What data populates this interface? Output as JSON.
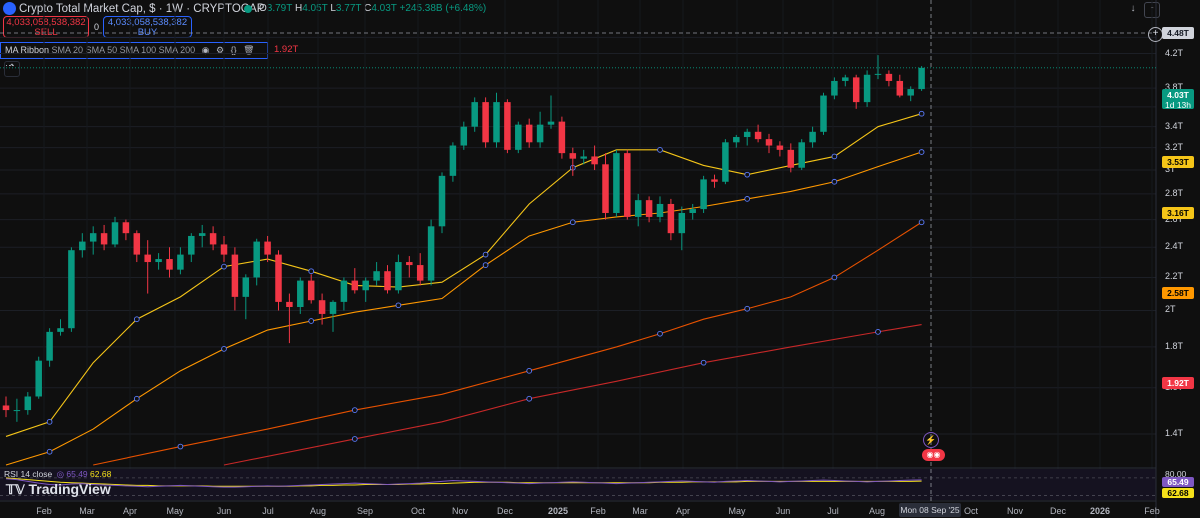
{
  "header": {
    "title": "Crypto Total Market Cap, $ · 1W · CRYPTOCAP",
    "ohlc": [
      {
        "label": "O",
        "value": "3.79T"
      },
      {
        "label": "H",
        "value": "4.05T"
      },
      {
        "label": "L",
        "value": "3.77T"
      },
      {
        "label": "C",
        "value": "4.03T"
      }
    ],
    "change": "+245.38B (+6.48%)"
  },
  "trade": {
    "sell_price": "4,033,058,538,382",
    "sell_label": "SELL",
    "spread": "0",
    "buy_price": "4,033,058,538,382",
    "buy_label": "BUY"
  },
  "indicator": {
    "name": "MA Ribbon",
    "params": "SMA 20 SMA 50 SMA 100 SMA 200",
    "trailing_value": "1.92T"
  },
  "rsi": {
    "label": "RSI 14 close",
    "value1": "65.49",
    "value2": "62.68"
  },
  "watermark": "TradingView",
  "price_axis": {
    "crosshair_price": "4.48T",
    "current_price": "4.03T",
    "countdown": "1d 13h",
    "ma_labels": [
      {
        "value": "3.53T",
        "color": "#f5c518",
        "text_color": "#000000"
      },
      {
        "value": "3.16T",
        "color": "#f5c518",
        "text_color": "#000000"
      },
      {
        "value": "2.58T",
        "color": "#ff9800",
        "text_color": "#000000"
      },
      {
        "value": "1.92T",
        "color": "#f23645",
        "text_color": "#ffffff"
      }
    ],
    "rsi_top": "80.00",
    "rsi_labels": [
      {
        "value": "65.49",
        "color": "#7e57c2",
        "text_color": "#ffffff"
      },
      {
        "value": "62.68",
        "color": "#f5e11a",
        "text_color": "#000000"
      }
    ]
  },
  "time_axis": {
    "crosshair_label": "Mon 08 Sep '25"
  },
  "colors": {
    "up": "#089981",
    "down": "#f23645",
    "sma20": "#f5c518",
    "sma50": "#ff9800",
    "sma100": "#e65100",
    "sma200": "#c62828",
    "rsi": "#7e57c2",
    "rsi_ma": "#f5e11a"
  },
  "chart_data": {
    "type": "candlestick",
    "title": "Crypto Total Market Cap, $ · 1W · CRYPTOCAP",
    "scale": "log",
    "ylim": [
      1.28,
      4.6
    ],
    "y_ticks": [
      "4.4T",
      "4.2T",
      "3.8T",
      "3.6T",
      "3.4T",
      "3.2T",
      "3T",
      "2.8T",
      "2.6T",
      "2.4T",
      "2.2T",
      "2T",
      "1.8T",
      "1.6T",
      "1.4T"
    ],
    "x_ticks": [
      "Feb",
      "Mar",
      "Apr",
      "May",
      "Jun",
      "Jul",
      "Aug",
      "Sep",
      "Oct",
      "Nov",
      "Dec",
      "2025",
      "Feb",
      "Mar",
      "Apr",
      "May",
      "Jun",
      "Jul",
      "Aug",
      "Oct",
      "Nov",
      "Dec",
      "2026",
      "Feb"
    ],
    "candles": [
      {
        "o": 1.52,
        "h": 1.56,
        "l": 1.47,
        "c": 1.5
      },
      {
        "o": 1.5,
        "h": 1.55,
        "l": 1.45,
        "c": 1.5
      },
      {
        "o": 1.5,
        "h": 1.58,
        "l": 1.48,
        "c": 1.56
      },
      {
        "o": 1.56,
        "h": 1.75,
        "l": 1.55,
        "c": 1.73
      },
      {
        "o": 1.73,
        "h": 1.9,
        "l": 1.7,
        "c": 1.88
      },
      {
        "o": 1.88,
        "h": 1.95,
        "l": 1.86,
        "c": 1.9
      },
      {
        "o": 1.9,
        "h": 2.4,
        "l": 1.88,
        "c": 2.38
      },
      {
        "o": 2.38,
        "h": 2.5,
        "l": 2.33,
        "c": 2.44
      },
      {
        "o": 2.44,
        "h": 2.55,
        "l": 2.35,
        "c": 2.5
      },
      {
        "o": 2.5,
        "h": 2.56,
        "l": 2.38,
        "c": 2.42
      },
      {
        "o": 2.42,
        "h": 2.62,
        "l": 2.4,
        "c": 2.58
      },
      {
        "o": 2.58,
        "h": 2.6,
        "l": 2.45,
        "c": 2.5
      },
      {
        "o": 2.5,
        "h": 2.52,
        "l": 2.3,
        "c": 2.35
      },
      {
        "o": 2.35,
        "h": 2.45,
        "l": 2.1,
        "c": 2.3
      },
      {
        "o": 2.3,
        "h": 2.36,
        "l": 2.25,
        "c": 2.32
      },
      {
        "o": 2.32,
        "h": 2.4,
        "l": 2.2,
        "c": 2.25
      },
      {
        "o": 2.25,
        "h": 2.4,
        "l": 2.22,
        "c": 2.35
      },
      {
        "o": 2.35,
        "h": 2.5,
        "l": 2.3,
        "c": 2.48
      },
      {
        "o": 2.48,
        "h": 2.56,
        "l": 2.4,
        "c": 2.5
      },
      {
        "o": 2.5,
        "h": 2.55,
        "l": 2.38,
        "c": 2.42
      },
      {
        "o": 2.42,
        "h": 2.48,
        "l": 2.3,
        "c": 2.35
      },
      {
        "o": 2.35,
        "h": 2.4,
        "l": 2.0,
        "c": 2.08
      },
      {
        "o": 2.08,
        "h": 2.22,
        "l": 1.95,
        "c": 2.2
      },
      {
        "o": 2.2,
        "h": 2.46,
        "l": 2.15,
        "c": 2.44
      },
      {
        "o": 2.44,
        "h": 2.48,
        "l": 2.3,
        "c": 2.35
      },
      {
        "o": 2.35,
        "h": 2.38,
        "l": 2.0,
        "c": 2.05
      },
      {
        "o": 2.05,
        "h": 2.1,
        "l": 1.82,
        "c": 2.02
      },
      {
        "o": 2.02,
        "h": 2.2,
        "l": 1.98,
        "c": 2.18
      },
      {
        "o": 2.18,
        "h": 2.22,
        "l": 2.04,
        "c": 2.06
      },
      {
        "o": 2.06,
        "h": 2.1,
        "l": 1.92,
        "c": 1.98
      },
      {
        "o": 1.98,
        "h": 2.06,
        "l": 1.88,
        "c": 2.05
      },
      {
        "o": 2.05,
        "h": 2.2,
        "l": 2.0,
        "c": 2.18
      },
      {
        "o": 2.18,
        "h": 2.26,
        "l": 2.1,
        "c": 2.12
      },
      {
        "o": 2.12,
        "h": 2.2,
        "l": 2.05,
        "c": 2.18
      },
      {
        "o": 2.18,
        "h": 2.3,
        "l": 2.15,
        "c": 2.24
      },
      {
        "o": 2.24,
        "h": 2.28,
        "l": 2.1,
        "c": 2.12
      },
      {
        "o": 2.12,
        "h": 2.35,
        "l": 2.1,
        "c": 2.3
      },
      {
        "o": 2.3,
        "h": 2.34,
        "l": 2.2,
        "c": 2.28
      },
      {
        "o": 2.28,
        "h": 2.36,
        "l": 2.15,
        "c": 2.18
      },
      {
        "o": 2.18,
        "h": 2.6,
        "l": 2.15,
        "c": 2.55
      },
      {
        "o": 2.55,
        "h": 2.98,
        "l": 2.5,
        "c": 2.95
      },
      {
        "o": 2.95,
        "h": 3.25,
        "l": 2.9,
        "c": 3.22
      },
      {
        "o": 3.22,
        "h": 3.45,
        "l": 3.18,
        "c": 3.4
      },
      {
        "o": 3.4,
        "h": 3.7,
        "l": 3.35,
        "c": 3.65
      },
      {
        "o": 3.65,
        "h": 3.7,
        "l": 3.2,
        "c": 3.25
      },
      {
        "o": 3.25,
        "h": 3.75,
        "l": 3.2,
        "c": 3.65
      },
      {
        "o": 3.65,
        "h": 3.68,
        "l": 3.15,
        "c": 3.18
      },
      {
        "o": 3.18,
        "h": 3.45,
        "l": 3.15,
        "c": 3.42
      },
      {
        "o": 3.42,
        "h": 3.48,
        "l": 3.2,
        "c": 3.25
      },
      {
        "o": 3.25,
        "h": 3.55,
        "l": 3.2,
        "c": 3.42
      },
      {
        "o": 3.42,
        "h": 3.72,
        "l": 3.38,
        "c": 3.45
      },
      {
        "o": 3.45,
        "h": 3.5,
        "l": 3.1,
        "c": 3.15
      },
      {
        "o": 3.15,
        "h": 3.2,
        "l": 2.95,
        "c": 3.1
      },
      {
        "o": 3.1,
        "h": 3.18,
        "l": 3.05,
        "c": 3.12
      },
      {
        "o": 3.12,
        "h": 3.22,
        "l": 3.0,
        "c": 3.05
      },
      {
        "o": 3.05,
        "h": 3.15,
        "l": 2.6,
        "c": 2.65
      },
      {
        "o": 2.65,
        "h": 3.18,
        "l": 2.62,
        "c": 3.15
      },
      {
        "o": 3.15,
        "h": 3.18,
        "l": 2.6,
        "c": 2.62
      },
      {
        "o": 2.62,
        "h": 2.8,
        "l": 2.55,
        "c": 2.75
      },
      {
        "o": 2.75,
        "h": 2.78,
        "l": 2.58,
        "c": 2.62
      },
      {
        "o": 2.62,
        "h": 2.78,
        "l": 2.58,
        "c": 2.72
      },
      {
        "o": 2.72,
        "h": 2.76,
        "l": 2.45,
        "c": 2.5
      },
      {
        "o": 2.5,
        "h": 2.7,
        "l": 2.38,
        "c": 2.65
      },
      {
        "o": 2.65,
        "h": 2.72,
        "l": 2.6,
        "c": 2.68
      },
      {
        "o": 2.68,
        "h": 2.95,
        "l": 2.65,
        "c": 2.92
      },
      {
        "o": 2.92,
        "h": 2.96,
        "l": 2.85,
        "c": 2.9
      },
      {
        "o": 2.9,
        "h": 3.28,
        "l": 2.88,
        "c": 3.25
      },
      {
        "o": 3.25,
        "h": 3.32,
        "l": 3.2,
        "c": 3.3
      },
      {
        "o": 3.3,
        "h": 3.38,
        "l": 3.22,
        "c": 3.35
      },
      {
        "o": 3.35,
        "h": 3.42,
        "l": 3.25,
        "c": 3.28
      },
      {
        "o": 3.28,
        "h": 3.33,
        "l": 3.15,
        "c": 3.22
      },
      {
        "o": 3.22,
        "h": 3.26,
        "l": 3.12,
        "c": 3.18
      },
      {
        "o": 3.18,
        "h": 3.24,
        "l": 2.98,
        "c": 3.02
      },
      {
        "o": 3.02,
        "h": 3.28,
        "l": 3.0,
        "c": 3.25
      },
      {
        "o": 3.25,
        "h": 3.4,
        "l": 3.2,
        "c": 3.35
      },
      {
        "o": 3.35,
        "h": 3.75,
        "l": 3.32,
        "c": 3.72
      },
      {
        "o": 3.72,
        "h": 3.92,
        "l": 3.68,
        "c": 3.88
      },
      {
        "o": 3.88,
        "h": 3.95,
        "l": 3.82,
        "c": 3.92
      },
      {
        "o": 3.92,
        "h": 3.95,
        "l": 3.58,
        "c": 3.65
      },
      {
        "o": 3.65,
        "h": 4.0,
        "l": 3.6,
        "c": 3.95
      },
      {
        "o": 3.95,
        "h": 4.18,
        "l": 3.9,
        "c": 3.96
      },
      {
        "o": 3.96,
        "h": 4.0,
        "l": 3.82,
        "c": 3.88
      },
      {
        "o": 3.88,
        "h": 3.95,
        "l": 3.7,
        "c": 3.72
      },
      {
        "o": 3.72,
        "h": 3.82,
        "l": 3.66,
        "c": 3.79
      },
      {
        "o": 3.79,
        "h": 4.05,
        "l": 3.77,
        "c": 4.03
      }
    ],
    "sma_series": [
      {
        "name": "SMA 20",
        "color": "#f5c518",
        "points": [
          [
            0,
            1.39
          ],
          [
            4,
            1.45
          ],
          [
            8,
            1.72
          ],
          [
            12,
            1.95
          ],
          [
            16,
            2.08
          ],
          [
            20,
            2.27
          ],
          [
            24,
            2.32
          ],
          [
            28,
            2.24
          ],
          [
            32,
            2.15
          ],
          [
            36,
            2.14
          ],
          [
            40,
            2.17
          ],
          [
            44,
            2.35
          ],
          [
            48,
            2.72
          ],
          [
            52,
            3.02
          ],
          [
            56,
            3.18
          ],
          [
            60,
            3.18
          ],
          [
            64,
            3.04
          ],
          [
            68,
            2.96
          ],
          [
            72,
            3.04
          ],
          [
            76,
            3.12
          ],
          [
            80,
            3.4
          ],
          [
            84,
            3.53
          ]
        ]
      },
      {
        "name": "SMA 50",
        "color": "#ff9800",
        "points": [
          [
            0,
            1.28
          ],
          [
            4,
            1.33
          ],
          [
            8,
            1.42
          ],
          [
            12,
            1.55
          ],
          [
            16,
            1.68
          ],
          [
            20,
            1.79
          ],
          [
            24,
            1.89
          ],
          [
            28,
            1.94
          ],
          [
            32,
            1.99
          ],
          [
            36,
            2.03
          ],
          [
            40,
            2.07
          ],
          [
            44,
            2.28
          ],
          [
            48,
            2.48
          ],
          [
            52,
            2.58
          ],
          [
            56,
            2.62
          ],
          [
            60,
            2.65
          ],
          [
            64,
            2.7
          ],
          [
            68,
            2.76
          ],
          [
            72,
            2.82
          ],
          [
            76,
            2.9
          ],
          [
            80,
            3.03
          ],
          [
            84,
            3.16
          ]
        ]
      },
      {
        "name": "SMA 100",
        "color": "#e65100",
        "points": [
          [
            8,
            1.28
          ],
          [
            16,
            1.35
          ],
          [
            24,
            1.42
          ],
          [
            32,
            1.5
          ],
          [
            40,
            1.57
          ],
          [
            48,
            1.68
          ],
          [
            56,
            1.8
          ],
          [
            60,
            1.87
          ],
          [
            64,
            1.95
          ],
          [
            68,
            2.01
          ],
          [
            72,
            2.08
          ],
          [
            76,
            2.2
          ],
          [
            80,
            2.38
          ],
          [
            84,
            2.58
          ]
        ]
      },
      {
        "name": "SMA 200",
        "color": "#c62828",
        "points": [
          [
            20,
            1.28
          ],
          [
            32,
            1.38
          ],
          [
            40,
            1.45
          ],
          [
            48,
            1.55
          ],
          [
            56,
            1.63
          ],
          [
            64,
            1.72
          ],
          [
            72,
            1.8
          ],
          [
            80,
            1.88
          ],
          [
            84,
            1.92
          ]
        ]
      }
    ],
    "rsi": {
      "values": [
        68,
        66,
        62,
        58,
        55,
        54,
        56,
        57,
        55,
        54,
        53,
        52,
        51,
        50,
        51,
        52,
        53,
        52,
        51,
        50,
        49,
        49,
        50,
        51,
        52,
        51,
        52,
        53,
        54,
        55,
        56,
        57,
        58,
        57,
        56,
        55,
        56,
        57,
        58,
        60,
        62,
        64,
        63,
        62,
        61,
        60,
        59,
        58,
        57,
        58,
        59,
        60,
        61,
        60,
        59,
        58,
        57,
        58,
        59,
        60,
        61,
        62,
        63,
        62,
        61,
        60,
        62,
        63,
        64,
        63,
        62,
        61,
        62,
        63,
        64,
        65,
        64,
        63,
        62,
        61,
        62,
        63,
        64,
        65,
        65.49
      ],
      "ma_values": [
        70,
        68,
        66,
        64,
        62,
        60,
        59,
        58,
        57,
        56,
        55,
        54,
        53,
        53,
        52,
        52,
        52,
        52,
        52,
        51,
        51,
        51,
        51,
        51,
        51,
        51,
        51,
        52,
        52,
        53,
        53,
        54,
        54,
        55,
        55,
        55,
        55,
        56,
        56,
        57,
        57,
        58,
        59,
        60,
        60,
        60,
        60,
        59,
        59,
        59,
        59,
        59,
        59,
        59,
        59,
        59,
        59,
        59,
        59,
        59,
        60,
        60,
        60,
        61,
        61,
        61,
        61,
        61,
        62,
        62,
        62,
        62,
        62,
        62,
        62,
        62,
        62,
        62,
        62,
        62,
        62,
        62,
        62,
        62,
        62.68
      ]
    }
  }
}
